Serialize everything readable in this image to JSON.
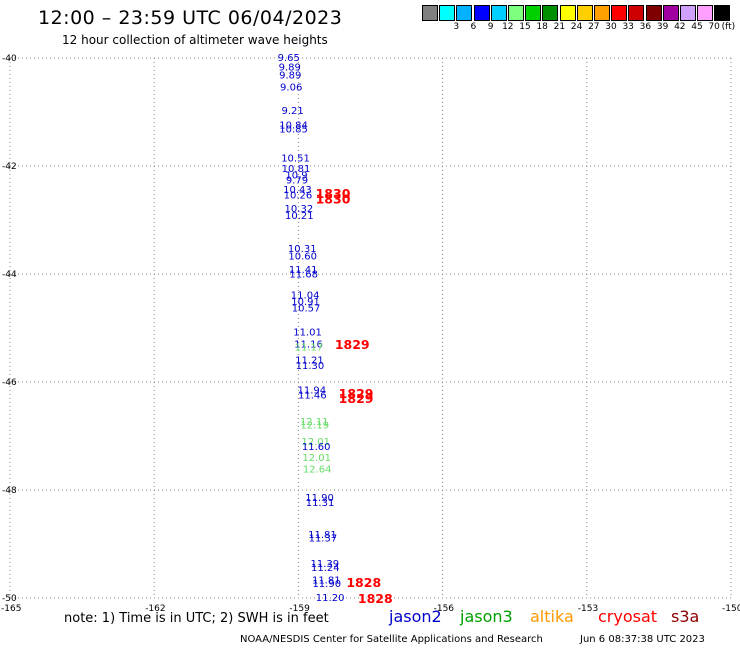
{
  "title": "12:00 – 23:59 UTC 06/04/2023",
  "subtitle": "12 hour collection of altimeter wave heights",
  "color_scale": {
    "units": "(ft)",
    "bins": [
      {
        "label": "",
        "color": "#7f7f7f"
      },
      {
        "label": "3",
        "color": "#00ffff"
      },
      {
        "label": "6",
        "color": "#00b2ff"
      },
      {
        "label": "9",
        "color": "#0000ff"
      },
      {
        "label": "12",
        "color": "#00cfff"
      },
      {
        "label": "15",
        "color": "#7fff7f"
      },
      {
        "label": "18",
        "color": "#00d000"
      },
      {
        "label": "21",
        "color": "#008f00"
      },
      {
        "label": "24",
        "color": "#ffff00"
      },
      {
        "label": "27",
        "color": "#ffcf00"
      },
      {
        "label": "30",
        "color": "#ff9f00"
      },
      {
        "label": "33",
        "color": "#ff0000"
      },
      {
        "label": "36",
        "color": "#cf0000"
      },
      {
        "label": "39",
        "color": "#7f0000"
      },
      {
        "label": "42",
        "color": "#a000a0"
      },
      {
        "label": "45",
        "color": "#cfa0ff"
      },
      {
        "label": "70",
        "color": "#ff9fff"
      },
      {
        "label": "",
        "color": "#000000"
      }
    ]
  },
  "map": {
    "lon_range": [
      -165,
      -150
    ],
    "lat_range": [
      -50,
      -40
    ],
    "lat_ticks": [
      "-40",
      "-42",
      "-44",
      "-46",
      "-48",
      "-50"
    ],
    "lon_ticks": [
      "-165",
      "-162",
      "-159",
      "-156",
      "-153",
      "-150"
    ]
  },
  "observations": [
    {
      "value": "9.65",
      "lon": -159.2,
      "lat": -40.0,
      "color": "#0000cc"
    },
    {
      "value": "9.89",
      "lon": -159.18,
      "lat": -40.18,
      "color": "#0000cc"
    },
    {
      "value": "9.89",
      "lon": -159.17,
      "lat": -40.32,
      "color": "#0000cc"
    },
    {
      "value": "9.06",
      "lon": -159.15,
      "lat": -40.55,
      "color": "#0000cc"
    },
    {
      "value": "9.21",
      "lon": -159.12,
      "lat": -40.98,
      "color": "#0000cc"
    },
    {
      "value": "10.84",
      "lon": -159.1,
      "lat": -41.25,
      "color": "#0000cc"
    },
    {
      "value": "10.85",
      "lon": -159.1,
      "lat": -41.32,
      "color": "#0000cc"
    },
    {
      "value": "10.51",
      "lon": -159.06,
      "lat": -41.86,
      "color": "#0000cc"
    },
    {
      "value": "10.81",
      "lon": -159.05,
      "lat": -42.06,
      "color": "#0000cc"
    },
    {
      "value": "10.9",
      "lon": -159.04,
      "lat": -42.18,
      "color": "#0000cc"
    },
    {
      "value": "9.79",
      "lon": -159.03,
      "lat": -42.27,
      "color": "#0000cc"
    },
    {
      "value": "10.43",
      "lon": -159.02,
      "lat": -42.44,
      "color": "#0000cc"
    },
    {
      "value": "10.26",
      "lon": -159.01,
      "lat": -42.55,
      "color": "#0000cc"
    },
    {
      "value": "10.32",
      "lon": -158.99,
      "lat": -42.8,
      "color": "#0000cc"
    },
    {
      "value": "10.21",
      "lon": -158.98,
      "lat": -42.93,
      "color": "#0000cc"
    },
    {
      "value": "10.31",
      "lon": -158.92,
      "lat": -43.54,
      "color": "#0000cc"
    },
    {
      "value": "10.60",
      "lon": -158.91,
      "lat": -43.68,
      "color": "#0000cc"
    },
    {
      "value": "11.41",
      "lon": -158.9,
      "lat": -43.93,
      "color": "#0000cc"
    },
    {
      "value": "11.68",
      "lon": -158.89,
      "lat": -44.01,
      "color": "#0000cc"
    },
    {
      "value": "11.04",
      "lon": -158.86,
      "lat": -44.4,
      "color": "#0000cc"
    },
    {
      "value": "10.91",
      "lon": -158.85,
      "lat": -44.52,
      "color": "#0000cc"
    },
    {
      "value": "10.57",
      "lon": -158.84,
      "lat": -44.64,
      "color": "#0000cc"
    },
    {
      "value": "11.01",
      "lon": -158.81,
      "lat": -45.08,
      "color": "#0000cc"
    },
    {
      "value": "11.16",
      "lon": -158.79,
      "lat": -45.31,
      "color": "#0000cc"
    },
    {
      "value": "11.17",
      "lon": -158.78,
      "lat": -45.36,
      "color": "#66dd66"
    },
    {
      "value": "11.21",
      "lon": -158.77,
      "lat": -45.6,
      "color": "#0000cc"
    },
    {
      "value": "11.30",
      "lon": -158.76,
      "lat": -45.7,
      "color": "#0000cc"
    },
    {
      "value": "11.94",
      "lon": -158.72,
      "lat": -46.16,
      "color": "#0000cc"
    },
    {
      "value": "11.46",
      "lon": -158.71,
      "lat": -46.25,
      "color": "#0000cc"
    },
    {
      "value": "12.11",
      "lon": -158.67,
      "lat": -46.74,
      "color": "#66dd66"
    },
    {
      "value": "12.19",
      "lon": -158.66,
      "lat": -46.81,
      "color": "#66dd66"
    },
    {
      "value": "12.01",
      "lon": -158.64,
      "lat": -47.11,
      "color": "#66dd66"
    },
    {
      "value": "11.60",
      "lon": -158.63,
      "lat": -47.2,
      "color": "#0000cc"
    },
    {
      "value": "12.01",
      "lon": -158.62,
      "lat": -47.41,
      "color": "#66dd66"
    },
    {
      "value": "12.64",
      "lon": -158.61,
      "lat": -47.62,
      "color": "#66dd66"
    },
    {
      "value": "11.90",
      "lon": -158.56,
      "lat": -48.15,
      "color": "#0000cc"
    },
    {
      "value": "11.31",
      "lon": -158.55,
      "lat": -48.24,
      "color": "#0000cc"
    },
    {
      "value": "11.81",
      "lon": -158.5,
      "lat": -48.83,
      "color": "#0000cc"
    },
    {
      "value": "11.37",
      "lon": -158.49,
      "lat": -48.9,
      "color": "#0000cc"
    },
    {
      "value": "11.39",
      "lon": -158.45,
      "lat": -49.37,
      "color": "#0000cc"
    },
    {
      "value": "11.24",
      "lon": -158.44,
      "lat": -49.44,
      "color": "#0000cc"
    },
    {
      "value": "11.81",
      "lon": -158.42,
      "lat": -49.68,
      "color": "#0000cc"
    },
    {
      "value": "11.90",
      "lon": -158.41,
      "lat": -49.74,
      "color": "#0000cc"
    },
    {
      "value": "11.20",
      "lon": -158.34,
      "lat": -50.0,
      "color": "#0000cc"
    }
  ],
  "time_labels": [
    {
      "value": "1830",
      "lon": -158.28,
      "lat": -42.5,
      "color": "#ff0000"
    },
    {
      "value": "1830",
      "lon": -158.28,
      "lat": -42.6,
      "color": "#ff0000"
    },
    {
      "value": "1829",
      "lon": -157.88,
      "lat": -45.3,
      "color": "#ff0000"
    },
    {
      "value": "1829",
      "lon": -157.8,
      "lat": -46.2,
      "color": "#ff0000"
    },
    {
      "value": "1829",
      "lon": -157.8,
      "lat": -46.3,
      "color": "#ff0000"
    },
    {
      "value": "1828",
      "lon": -157.64,
      "lat": -49.7,
      "color": "#ff0000"
    },
    {
      "value": "1828",
      "lon": -157.4,
      "lat": -50.0,
      "color": "#ff0000"
    }
  ],
  "note": "note:  1) Time is in UTC; 2) SWH is in feet",
  "legend": [
    {
      "name": "jason2",
      "color": "#0000cc"
    },
    {
      "name": "jason3",
      "color": "#00a000"
    },
    {
      "name": "altika",
      "color": "#ff9900"
    },
    {
      "name": "cryosat",
      "color": "#ff0000"
    },
    {
      "name": "s3a",
      "color": "#8b0000"
    }
  ],
  "credit": "NOAA/NESDIS Center for Satellite Applications and Research",
  "generated": "Jun  6 08:37:38 UTC 2023"
}
